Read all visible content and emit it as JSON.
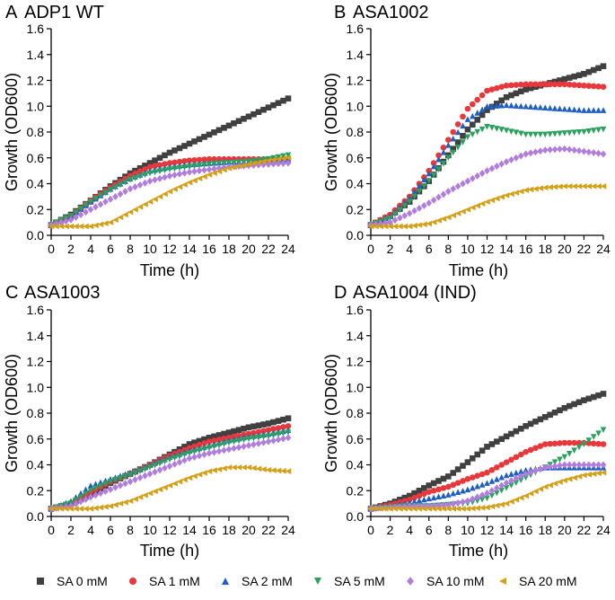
{
  "chart_data": {
    "type": "scatter",
    "shared": {
      "xlabel": "Time (h)",
      "ylabel": "Growth (OD600)",
      "xlim": [
        0,
        24
      ],
      "ylim": [
        0,
        1.6
      ],
      "xticks": [
        "0",
        "2",
        "4",
        "6",
        "8",
        "10",
        "12",
        "14",
        "16",
        "18",
        "20",
        "22",
        "24"
      ],
      "yticks": [
        "0.0",
        "0.2",
        "0.4",
        "0.6",
        "0.8",
        "1.0",
        "1.2",
        "1.4",
        "1.6"
      ]
    },
    "legend": [
      {
        "name": "SA 0 mM",
        "color": "#404040",
        "marker": "square"
      },
      {
        "name": "SA 1 mM",
        "color": "#e8383b",
        "marker": "circle"
      },
      {
        "name": "SA 2 mM",
        "color": "#1f5fc4",
        "marker": "triangle-up"
      },
      {
        "name": "SA 5 mM",
        "color": "#2aa15c",
        "marker": "triangle-down"
      },
      {
        "name": "SA 10 mM",
        "color": "#b07cde",
        "marker": "diamond"
      },
      {
        "name": "SA 20 mM",
        "color": "#d4a017",
        "marker": "triangle-left"
      }
    ],
    "panels": [
      {
        "letter": "A",
        "name": "ADP1 WT",
        "series": [
          {
            "name": "SA 0 mM",
            "x": [
              0,
              2,
              4,
              6,
              8,
              10,
              12,
              14,
              16,
              18,
              20,
              22,
              24
            ],
            "y": [
              0.08,
              0.16,
              0.27,
              0.38,
              0.48,
              0.56,
              0.64,
              0.71,
              0.78,
              0.85,
              0.92,
              0.99,
              1.06
            ]
          },
          {
            "name": "SA 1 mM",
            "x": [
              0,
              2,
              4,
              6,
              8,
              10,
              12,
              14,
              16,
              18,
              20,
              22,
              24
            ],
            "y": [
              0.08,
              0.15,
              0.27,
              0.37,
              0.46,
              0.53,
              0.56,
              0.58,
              0.59,
              0.59,
              0.59,
              0.59,
              0.59
            ]
          },
          {
            "name": "SA 2 mM",
            "x": [
              0,
              2,
              4,
              6,
              8,
              10,
              12,
              14,
              16,
              18,
              20,
              22,
              24
            ],
            "y": [
              0.08,
              0.15,
              0.26,
              0.36,
              0.44,
              0.5,
              0.53,
              0.55,
              0.56,
              0.57,
              0.57,
              0.58,
              0.59
            ]
          },
          {
            "name": "SA 5 mM",
            "x": [
              0,
              2,
              4,
              6,
              8,
              10,
              12,
              14,
              16,
              18,
              20,
              22,
              24
            ],
            "y": [
              0.08,
              0.15,
              0.26,
              0.35,
              0.43,
              0.48,
              0.51,
              0.53,
              0.55,
              0.56,
              0.57,
              0.59,
              0.62
            ]
          },
          {
            "name": "SA 10 mM",
            "x": [
              0,
              2,
              4,
              6,
              8,
              10,
              12,
              14,
              16,
              18,
              20,
              22,
              24
            ],
            "y": [
              0.08,
              0.12,
              0.2,
              0.28,
              0.36,
              0.42,
              0.46,
              0.49,
              0.51,
              0.53,
              0.54,
              0.55,
              0.56
            ]
          },
          {
            "name": "SA 20 mM",
            "x": [
              0,
              2,
              4,
              6,
              8,
              10,
              12,
              14,
              16,
              18,
              20,
              22,
              24
            ],
            "y": [
              0.07,
              0.07,
              0.07,
              0.1,
              0.18,
              0.26,
              0.34,
              0.41,
              0.47,
              0.52,
              0.55,
              0.58,
              0.6
            ]
          }
        ]
      },
      {
        "letter": "B",
        "name": "ASA1002",
        "series": [
          {
            "name": "SA 0 mM",
            "x": [
              0,
              2,
              4,
              6,
              8,
              10,
              12,
              14,
              16,
              18,
              20,
              22,
              24
            ],
            "y": [
              0.08,
              0.15,
              0.26,
              0.42,
              0.62,
              0.82,
              0.97,
              1.07,
              1.13,
              1.17,
              1.21,
              1.25,
              1.31
            ]
          },
          {
            "name": "SA 1 mM",
            "x": [
              0,
              2,
              4,
              6,
              8,
              10,
              12,
              14,
              16,
              18,
              20,
              22,
              24
            ],
            "y": [
              0.08,
              0.16,
              0.3,
              0.5,
              0.74,
              0.98,
              1.12,
              1.16,
              1.17,
              1.17,
              1.17,
              1.16,
              1.15
            ]
          },
          {
            "name": "SA 2 mM",
            "x": [
              0,
              2,
              4,
              6,
              8,
              10,
              12,
              14,
              16,
              18,
              20,
              22,
              24
            ],
            "y": [
              0.08,
              0.15,
              0.29,
              0.48,
              0.7,
              0.9,
              1.0,
              1.01,
              1.0,
              0.99,
              0.98,
              0.97,
              0.97
            ]
          },
          {
            "name": "SA 5 mM",
            "x": [
              0,
              2,
              4,
              6,
              8,
              10,
              12,
              14,
              16,
              18,
              20,
              22,
              24
            ],
            "y": [
              0.08,
              0.13,
              0.26,
              0.42,
              0.6,
              0.76,
              0.84,
              0.81,
              0.78,
              0.78,
              0.79,
              0.8,
              0.82
            ]
          },
          {
            "name": "SA 10 mM",
            "x": [
              0,
              2,
              4,
              6,
              8,
              10,
              12,
              14,
              16,
              18,
              20,
              22,
              24
            ],
            "y": [
              0.08,
              0.1,
              0.17,
              0.25,
              0.34,
              0.42,
              0.5,
              0.57,
              0.63,
              0.66,
              0.67,
              0.65,
              0.63
            ]
          },
          {
            "name": "SA 20 mM",
            "x": [
              0,
              2,
              4,
              6,
              8,
              10,
              12,
              14,
              16,
              18,
              20,
              22,
              24
            ],
            "y": [
              0.07,
              0.07,
              0.07,
              0.09,
              0.14,
              0.2,
              0.26,
              0.31,
              0.35,
              0.37,
              0.38,
              0.38,
              0.38
            ]
          }
        ]
      },
      {
        "letter": "C",
        "name": "ASA1003",
        "series": [
          {
            "name": "SA 0 mM",
            "x": [
              0,
              2,
              4,
              6,
              8,
              10,
              12,
              14,
              16,
              18,
              20,
              22,
              24
            ],
            "y": [
              0.06,
              0.1,
              0.17,
              0.26,
              0.33,
              0.4,
              0.48,
              0.56,
              0.61,
              0.65,
              0.69,
              0.72,
              0.76
            ]
          },
          {
            "name": "SA 1 mM",
            "x": [
              0,
              2,
              4,
              6,
              8,
              10,
              12,
              14,
              16,
              18,
              20,
              22,
              24
            ],
            "y": [
              0.06,
              0.1,
              0.19,
              0.27,
              0.33,
              0.4,
              0.47,
              0.53,
              0.58,
              0.61,
              0.64,
              0.67,
              0.7
            ]
          },
          {
            "name": "SA 2 mM",
            "x": [
              0,
              2,
              4,
              6,
              8,
              10,
              12,
              14,
              16,
              18,
              20,
              22,
              24
            ],
            "y": [
              0.06,
              0.12,
              0.24,
              0.29,
              0.34,
              0.4,
              0.46,
              0.51,
              0.55,
              0.59,
              0.62,
              0.64,
              0.67
            ]
          },
          {
            "name": "SA 5 mM",
            "x": [
              0,
              2,
              4,
              6,
              8,
              10,
              12,
              14,
              16,
              18,
              20,
              22,
              24
            ],
            "y": [
              0.06,
              0.1,
              0.2,
              0.27,
              0.32,
              0.38,
              0.44,
              0.49,
              0.53,
              0.57,
              0.6,
              0.62,
              0.65
            ]
          },
          {
            "name": "SA 10 mM",
            "x": [
              0,
              2,
              4,
              6,
              8,
              10,
              12,
              14,
              16,
              18,
              20,
              22,
              24
            ],
            "y": [
              0.06,
              0.08,
              0.15,
              0.21,
              0.27,
              0.33,
              0.39,
              0.45,
              0.49,
              0.52,
              0.55,
              0.58,
              0.61
            ]
          },
          {
            "name": "SA 20 mM",
            "x": [
              0,
              2,
              4,
              6,
              8,
              10,
              12,
              14,
              16,
              18,
              20,
              22,
              24
            ],
            "y": [
              0.06,
              0.06,
              0.06,
              0.08,
              0.12,
              0.18,
              0.24,
              0.3,
              0.35,
              0.38,
              0.38,
              0.36,
              0.35
            ]
          }
        ]
      },
      {
        "letter": "D",
        "name": "ASA1004 (IND)",
        "series": [
          {
            "name": "SA 0 mM",
            "x": [
              0,
              2,
              4,
              6,
              8,
              10,
              12,
              14,
              16,
              18,
              20,
              22,
              24
            ],
            "y": [
              0.06,
              0.1,
              0.16,
              0.24,
              0.31,
              0.42,
              0.54,
              0.62,
              0.7,
              0.77,
              0.84,
              0.9,
              0.95
            ]
          },
          {
            "name": "SA 1 mM",
            "x": [
              0,
              2,
              4,
              6,
              8,
              10,
              12,
              14,
              16,
              18,
              20,
              22,
              24
            ],
            "y": [
              0.06,
              0.09,
              0.13,
              0.19,
              0.23,
              0.29,
              0.34,
              0.42,
              0.5,
              0.56,
              0.57,
              0.57,
              0.56
            ]
          },
          {
            "name": "SA 2 mM",
            "x": [
              0,
              2,
              4,
              6,
              8,
              10,
              12,
              14,
              16,
              18,
              20,
              22,
              24
            ],
            "y": [
              0.06,
              0.08,
              0.11,
              0.14,
              0.17,
              0.21,
              0.26,
              0.32,
              0.36,
              0.38,
              0.38,
              0.38,
              0.38
            ]
          },
          {
            "name": "SA 5 mM",
            "x": [
              0,
              2,
              4,
              6,
              8,
              10,
              12,
              14,
              16,
              18,
              20,
              22,
              24
            ],
            "y": [
              0.06,
              0.07,
              0.08,
              0.08,
              0.09,
              0.1,
              0.14,
              0.22,
              0.3,
              0.38,
              0.46,
              0.56,
              0.67
            ]
          },
          {
            "name": "SA 10 mM",
            "x": [
              0,
              2,
              4,
              6,
              8,
              10,
              12,
              14,
              16,
              18,
              20,
              22,
              24
            ],
            "y": [
              0.06,
              0.07,
              0.08,
              0.08,
              0.09,
              0.12,
              0.18,
              0.26,
              0.33,
              0.38,
              0.4,
              0.4,
              0.4
            ]
          },
          {
            "name": "SA 20 mM",
            "x": [
              0,
              2,
              4,
              6,
              8,
              10,
              12,
              14,
              16,
              18,
              20,
              22,
              24
            ],
            "y": [
              0.06,
              0.06,
              0.06,
              0.06,
              0.06,
              0.06,
              0.07,
              0.1,
              0.16,
              0.23,
              0.28,
              0.32,
              0.34
            ]
          }
        ]
      }
    ]
  }
}
